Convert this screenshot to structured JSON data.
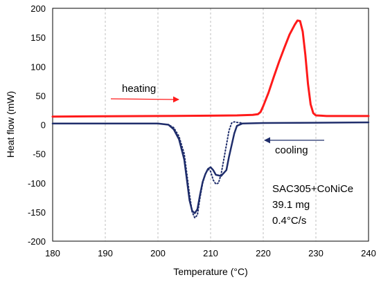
{
  "chart_data": {
    "type": "line",
    "xlabel": "Temperature (°C)",
    "ylabel": "Heat flow (mW)",
    "xlim": [
      180,
      240
    ],
    "ylim": [
      -200,
      200
    ],
    "xticks": [
      180,
      190,
      200,
      210,
      220,
      230,
      240
    ],
    "yticks": [
      -200,
      -150,
      -100,
      -50,
      0,
      50,
      100,
      150,
      200
    ],
    "grid": "vertical dashed",
    "series": [
      {
        "name": "heating",
        "color": "#ff1a1a",
        "style": "solid",
        "x": [
          180,
          190,
          200,
          210,
          215,
          218,
          219,
          219.5,
          220,
          221,
          222,
          223,
          224,
          225,
          226,
          226.5,
          227,
          227.5,
          228,
          228.5,
          229,
          229.5,
          230,
          231,
          232,
          235,
          240
        ],
        "y": [
          14,
          14.5,
          15,
          15.5,
          16,
          17,
          18,
          22,
          32,
          55,
          82,
          108,
          132,
          155,
          172,
          179,
          178,
          160,
          120,
          70,
          35,
          20,
          16,
          15.5,
          15,
          15,
          15
        ]
      },
      {
        "name": "cooling",
        "color": "#1f2d6b",
        "style": "solid",
        "x": [
          180,
          190,
          200,
          202,
          203,
          204,
          205,
          205.5,
          206,
          206.5,
          207,
          207.5,
          208,
          208.5,
          209,
          209.5,
          210,
          210.5,
          211,
          212,
          213,
          213.5,
          214,
          214.5,
          215,
          216,
          220,
          230,
          240
        ],
        "y": [
          2,
          2,
          2,
          0,
          -8,
          -25,
          -60,
          -95,
          -130,
          -148,
          -152,
          -145,
          -120,
          -98,
          -85,
          -76,
          -73,
          -78,
          -86,
          -88,
          -78,
          -55,
          -35,
          -15,
          -2,
          2,
          3,
          3.5,
          4
        ]
      },
      {
        "name": "cooling (dotted)",
        "color": "#1f2d6b",
        "style": "dotted",
        "x": [
          200,
          202,
          203,
          204,
          205,
          205.5,
          206,
          206.5,
          207,
          207.5,
          208,
          208.5,
          209,
          209.5,
          210,
          210.5,
          211,
          211.5,
          212,
          212.5,
          213,
          213.5,
          214,
          214.5,
          215,
          216
        ],
        "y": [
          2,
          0,
          -5,
          -20,
          -50,
          -85,
          -120,
          -150,
          -160,
          -155,
          -125,
          -100,
          -85,
          -76,
          -80,
          -95,
          -102,
          -100,
          -85,
          -60,
          -35,
          -10,
          3,
          5,
          4,
          3
        ]
      }
    ]
  },
  "annotations": {
    "heating_label": "heating",
    "cooling_label": "cooling",
    "sample_lines": [
      "SAC305+CoNiCe",
      "39.1 mg",
      "0.4°C/s"
    ]
  }
}
